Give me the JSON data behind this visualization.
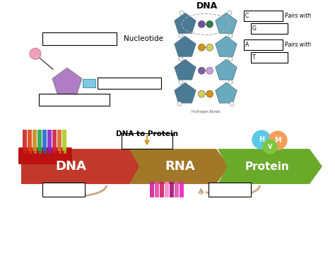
{
  "bg_color": "#ffffff",
  "nucleotide_label": "Nucleotide",
  "circle_color": "#f0a0b8",
  "pentagon_color": "#b07cc6",
  "small_rect_color": "#7ec8e3",
  "dna_label": "DNA",
  "pairs_with_1": "Pairs with",
  "pairs_with_2": "Pairs with",
  "pair_C": "C",
  "pair_G": "G",
  "pair_A": "A",
  "pair_T": "T",
  "arrow_dna_label": "DNA",
  "arrow_rna_label": "RNA",
  "arrow_protein_label": "Protein",
  "dna_to_protein_label": "DNA to Protein",
  "dna_arrow_color": "#c0392b",
  "rna_arrow_color": "#a07828",
  "protein_arrow_color": "#6aaa2a",
  "box_color": "#ffffff",
  "box_edge": "#000000",
  "ball_H_color": "#5bc8e8",
  "ball_V_color": "#7dc63f",
  "ball_M_color": "#f5a05a",
  "ball_H_label": "H",
  "ball_V_label": "V",
  "ball_M_label": "M",
  "teal_dark": "#4a7a94",
  "teal_light": "#6aaac0",
  "arc_color": "#c8a882",
  "hbond_label": "Hydrogen Bonds"
}
